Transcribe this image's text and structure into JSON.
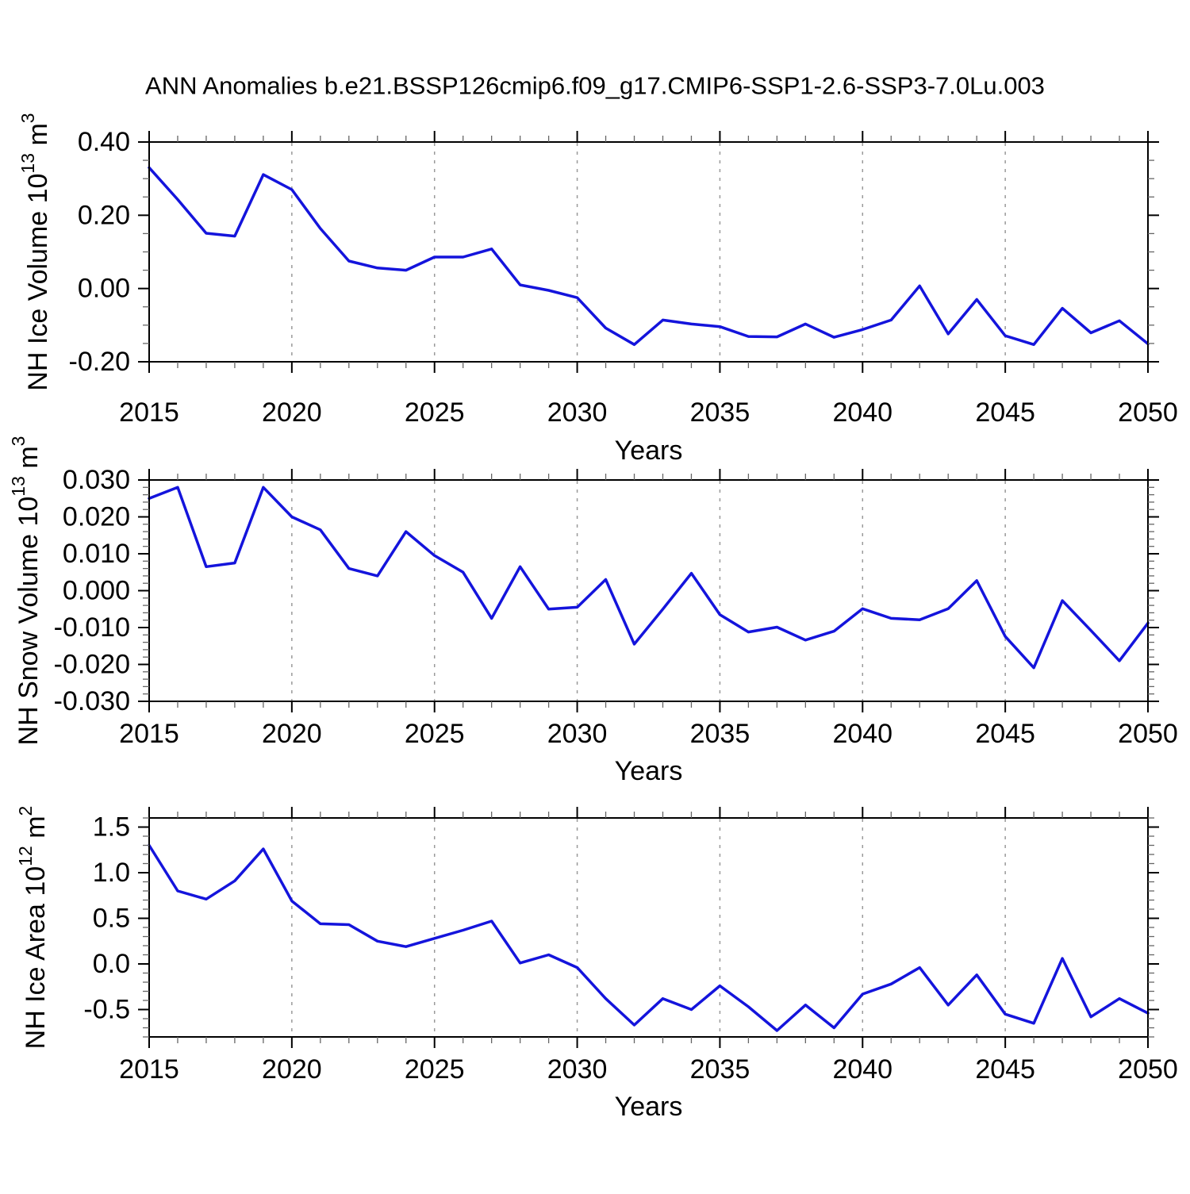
{
  "title": "ANN Anomalies b.e21.BSSP126cmip6.f09_g17.CMIP6-SSP1-2.6-SSP3-7.0Lu.003",
  "colors": {
    "line": "#1414dc",
    "grid": "#9a9a9a",
    "axis": "#000000",
    "minor_tick": "#666666",
    "background": "#ffffff"
  },
  "chart_data": [
    {
      "type": "line",
      "name": "nh-ice-volume",
      "ylabel": "NH Ice Volume 10^13 m^3",
      "ylabel_parts": [
        [
          "NH Ice Volume 10",
          false
        ],
        [
          "13",
          true
        ],
        [
          " m",
          false
        ],
        [
          "3",
          true
        ]
      ],
      "xlabel": "Years",
      "ylim": [
        -0.2,
        0.4
      ],
      "yticks": [
        {
          "value": 0.4,
          "label": "0.40"
        },
        {
          "value": 0.2,
          "label": "0.20"
        },
        {
          "value": 0.0,
          "label": "0.00"
        },
        {
          "value": -0.2,
          "label": "-0.20"
        }
      ],
      "ytick_minor_step": 0.05,
      "xticks": [
        2015,
        2020,
        2025,
        2030,
        2035,
        2040,
        2045,
        2050
      ],
      "grid_x": [
        2020,
        2025,
        2030,
        2035,
        2040,
        2045
      ],
      "x": [
        2015,
        2016,
        2017,
        2018,
        2019,
        2020,
        2021,
        2022,
        2023,
        2024,
        2025,
        2026,
        2027,
        2028,
        2029,
        2030,
        2031,
        2032,
        2033,
        2034,
        2035,
        2036,
        2037,
        2038,
        2039,
        2040,
        2041,
        2042,
        2043,
        2044,
        2045,
        2046,
        2047,
        2048,
        2049,
        2050
      ],
      "values": [
        0.33,
        0.243,
        0.151,
        0.143,
        0.311,
        0.27,
        0.164,
        0.075,
        0.056,
        0.05,
        0.086,
        0.086,
        0.108,
        0.01,
        -0.005,
        -0.025,
        -0.108,
        -0.153,
        -0.086,
        -0.097,
        -0.104,
        -0.131,
        -0.132,
        -0.097,
        -0.133,
        -0.112,
        -0.086,
        0.007,
        -0.124,
        -0.03,
        -0.129,
        -0.153,
        -0.054,
        -0.121,
        -0.088,
        -0.151
      ]
    },
    {
      "type": "line",
      "name": "nh-snow-volume",
      "ylabel": "NH Snow Volume 10^13 m^3",
      "ylabel_parts": [
        [
          "NH Snow Volume 10",
          false
        ],
        [
          "13",
          true
        ],
        [
          " m",
          false
        ],
        [
          "3",
          true
        ]
      ],
      "xlabel": "Years",
      "ylim": [
        -0.03,
        0.03
      ],
      "yticks": [
        {
          "value": 0.03,
          "label": "0.030"
        },
        {
          "value": 0.02,
          "label": "0.020"
        },
        {
          "value": 0.01,
          "label": "0.010"
        },
        {
          "value": 0.0,
          "label": "0.000"
        },
        {
          "value": -0.01,
          "label": "-0.010"
        },
        {
          "value": -0.02,
          "label": "-0.020"
        },
        {
          "value": -0.03,
          "label": "-0.030"
        }
      ],
      "ytick_minor_step": 0.002,
      "xticks": [
        2015,
        2020,
        2025,
        2030,
        2035,
        2040,
        2045,
        2050
      ],
      "grid_x": [
        2020,
        2025,
        2030,
        2035,
        2040,
        2045
      ],
      "x": [
        2015,
        2016,
        2017,
        2018,
        2019,
        2020,
        2021,
        2022,
        2023,
        2024,
        2025,
        2026,
        2027,
        2028,
        2029,
        2030,
        2031,
        2032,
        2033,
        2034,
        2035,
        2036,
        2037,
        2038,
        2039,
        2040,
        2041,
        2042,
        2043,
        2044,
        2045,
        2046,
        2047,
        2048,
        2049,
        2050
      ],
      "values": [
        0.025,
        0.028,
        0.0065,
        0.0075,
        0.028,
        0.02,
        0.0165,
        0.006,
        0.004,
        0.016,
        0.0095,
        0.005,
        -0.0075,
        0.0065,
        -0.005,
        -0.0045,
        0.003,
        -0.0145,
        -0.005,
        0.0047,
        -0.0065,
        -0.0112,
        -0.0099,
        -0.0134,
        -0.011,
        -0.0049,
        -0.0075,
        -0.0079,
        -0.0049,
        0.0027,
        -0.0124,
        -0.0209,
        -0.0027,
        -0.0108,
        -0.019,
        -0.0088
      ]
    },
    {
      "type": "line",
      "name": "nh-ice-area",
      "ylabel": "NH Ice Area 10^12 m^2",
      "ylabel_parts": [
        [
          "NH Ice Area 10",
          false
        ],
        [
          "12",
          true
        ],
        [
          " m",
          false
        ],
        [
          "2",
          true
        ]
      ],
      "xlabel": "Years",
      "ylim": [
        -0.8,
        1.6
      ],
      "yticks": [
        {
          "value": 1.5,
          "label": "1.5"
        },
        {
          "value": 1.0,
          "label": "1.0"
        },
        {
          "value": 0.5,
          "label": "0.5"
        },
        {
          "value": 0.0,
          "label": "0.0"
        },
        {
          "value": -0.5,
          "label": "-0.5"
        }
      ],
      "ytick_minor_step": 0.1,
      "xticks": [
        2015,
        2020,
        2025,
        2030,
        2035,
        2040,
        2045,
        2050
      ],
      "grid_x": [
        2020,
        2025,
        2030,
        2035,
        2040,
        2045
      ],
      "x": [
        2015,
        2016,
        2017,
        2018,
        2019,
        2020,
        2021,
        2022,
        2023,
        2024,
        2025,
        2026,
        2027,
        2028,
        2029,
        2030,
        2031,
        2032,
        2033,
        2034,
        2035,
        2036,
        2037,
        2038,
        2039,
        2040,
        2041,
        2042,
        2043,
        2044,
        2045,
        2046,
        2047,
        2048,
        2049,
        2050
      ],
      "values": [
        1.3,
        0.8,
        0.71,
        0.91,
        1.26,
        0.69,
        0.44,
        0.43,
        0.25,
        0.19,
        0.28,
        0.37,
        0.47,
        0.01,
        0.1,
        -0.04,
        -0.38,
        -0.67,
        -0.38,
        -0.5,
        -0.24,
        -0.47,
        -0.73,
        -0.45,
        -0.7,
        -0.33,
        -0.22,
        -0.04,
        -0.45,
        -0.12,
        -0.55,
        -0.65,
        0.06,
        -0.58,
        -0.38,
        -0.54
      ]
    }
  ]
}
